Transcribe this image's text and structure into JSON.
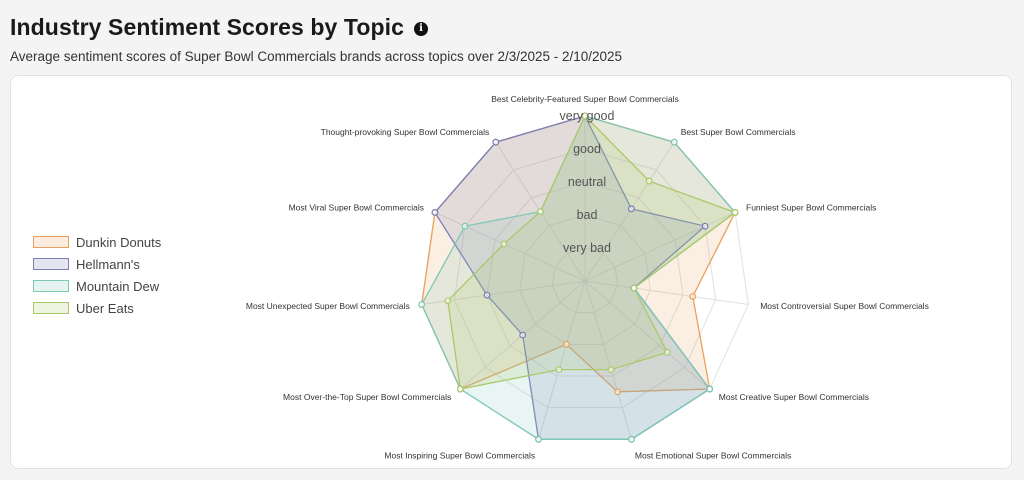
{
  "header": {
    "title": "Industry Sentiment Scores by Topic",
    "info_icon": "info-icon",
    "subtitle": "Average sentiment scores of Super Bowl Commercials brands across topics over 2/3/2025 - 2/10/2025"
  },
  "chart_data": {
    "type": "radar",
    "axes": [
      "Best Celebrity-Featured Super Bowl Commercials",
      "Best Super Bowl Commercials",
      "Funniest Super Bowl Commercials",
      "Most Controversial Super Bowl Commercials",
      "Most Creative Super Bowl Commercials",
      "Most Emotional Super Bowl Commercials",
      "Most Inspiring Super Bowl Commercials",
      "Most Over-the-Top Super Bowl Commercials",
      "Most Unexpected Super Bowl Commercials",
      "Most Viral Super Bowl Commercials",
      "Thought-provoking Super Bowl Commercials"
    ],
    "levels": [
      "very bad",
      "bad",
      "neutral",
      "good",
      "very good"
    ],
    "range": [
      0,
      5
    ],
    "legend_position": "left",
    "series": [
      {
        "name": "Dunkin Donuts",
        "color": "#e8a15c",
        "values": [
          5,
          5,
          5,
          3.3,
          5,
          3.5,
          2.0,
          5,
          5,
          5,
          5
        ]
      },
      {
        "name": "Hellmann's",
        "color": "#7a7fb8",
        "values": [
          5,
          2.6,
          4.0,
          1.5,
          5,
          5,
          5,
          2.5,
          3.0,
          5,
          5
        ]
      },
      {
        "name": "Mountain Dew",
        "color": "#7fc7b5",
        "values": [
          5,
          5,
          5,
          1.5,
          5,
          5,
          5,
          5,
          5,
          4.0,
          2.5
        ]
      },
      {
        "name": "Uber Eats",
        "color": "#aac96a",
        "values": [
          5,
          3.6,
          5,
          1.5,
          3.3,
          2.8,
          2.8,
          5,
          4.2,
          2.7,
          2.5
        ]
      }
    ]
  }
}
